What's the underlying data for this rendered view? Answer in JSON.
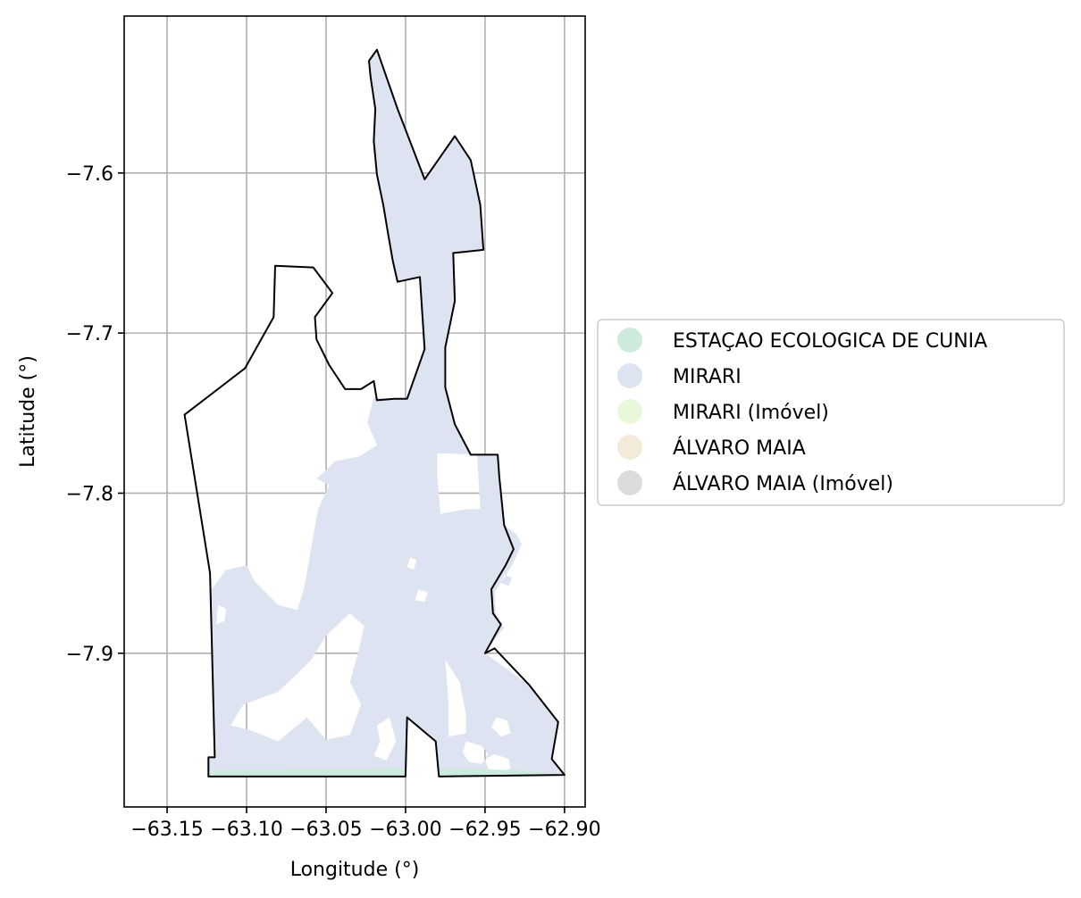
{
  "chart_data": {
    "type": "map",
    "xlabel": "Longitude (°)",
    "ylabel": "Latitude (°)",
    "xlim": [
      -63.177,
      -62.887
    ],
    "ylim": [
      -7.996,
      -7.502
    ],
    "grid": true,
    "xticks": [
      {
        "value": -63.15,
        "label": "−63.15"
      },
      {
        "value": -63.1,
        "label": "−63.10"
      },
      {
        "value": -63.05,
        "label": "−63.05"
      },
      {
        "value": -63.0,
        "label": "−63.00"
      },
      {
        "value": -62.95,
        "label": "−62.95"
      },
      {
        "value": -62.9,
        "label": "−62.90"
      }
    ],
    "yticks": [
      {
        "value": -7.6,
        "label": "−7.6"
      },
      {
        "value": -7.7,
        "label": "−7.7"
      },
      {
        "value": -7.8,
        "label": "−7.8"
      },
      {
        "value": -7.9,
        "label": "−7.9"
      }
    ],
    "legend_position": "right",
    "legend": [
      {
        "label": "ESTAÇAO ECOLOGICA DE CUNIA",
        "color": "#cdebdc"
      },
      {
        "label": "MIRARI",
        "color": "#dde3f1"
      },
      {
        "label": "MIRARI (Imóvel)",
        "color": "#e9f8da"
      },
      {
        "label": "ÁLVARO MAIA",
        "color": "#f3ead9"
      },
      {
        "label": "ÁLVARO MAIA (Imóvel)",
        "color": "#dcdcdc"
      }
    ],
    "boundary": [
      [
        -63.018,
        -7.523
      ],
      [
        -63.005,
        -7.56
      ],
      [
        -62.988,
        -7.604
      ],
      [
        -62.969,
        -7.577
      ],
      [
        -62.959,
        -7.592
      ],
      [
        -62.953,
        -7.62
      ],
      [
        -62.951,
        -7.648
      ],
      [
        -62.97,
        -7.65
      ],
      [
        -62.969,
        -7.68
      ],
      [
        -62.975,
        -7.709
      ],
      [
        -62.975,
        -7.734
      ],
      [
        -62.969,
        -7.757
      ],
      [
        -62.959,
        -7.776
      ],
      [
        -62.942,
        -7.776
      ],
      [
        -62.941,
        -7.79
      ],
      [
        -62.938,
        -7.82
      ],
      [
        -62.932,
        -7.835
      ],
      [
        -62.937,
        -7.845
      ],
      [
        -62.946,
        -7.86
      ],
      [
        -62.945,
        -7.875
      ],
      [
        -62.94,
        -7.882
      ],
      [
        -62.95,
        -7.9
      ],
      [
        -62.944,
        -7.897
      ],
      [
        -62.922,
        -7.92
      ],
      [
        -62.904,
        -7.943
      ],
      [
        -62.908,
        -7.966
      ],
      [
        -62.9,
        -7.976
      ],
      [
        -62.979,
        -7.977
      ],
      [
        -62.981,
        -7.955
      ],
      [
        -62.999,
        -7.94
      ],
      [
        -63.0,
        -7.977
      ],
      [
        -63.124,
        -7.977
      ],
      [
        -63.124,
        -7.965
      ],
      [
        -63.12,
        -7.965
      ],
      [
        -63.123,
        -7.85
      ],
      [
        -63.139,
        -7.751
      ],
      [
        -63.101,
        -7.722
      ],
      [
        -63.083,
        -7.69
      ],
      [
        -63.082,
        -7.658
      ],
      [
        -63.058,
        -7.659
      ],
      [
        -63.046,
        -7.675
      ],
      [
        -63.057,
        -7.69
      ],
      [
        -63.056,
        -7.704
      ],
      [
        -63.048,
        -7.72
      ],
      [
        -63.038,
        -7.735
      ],
      [
        -63.028,
        -7.735
      ],
      [
        -63.02,
        -7.73
      ],
      [
        -63.018,
        -7.742
      ],
      [
        -63.007,
        -7.741
      ],
      [
        -62.999,
        -7.741
      ],
      [
        -62.988,
        -7.71
      ],
      [
        -62.991,
        -7.665
      ],
      [
        -63.005,
        -7.668
      ],
      [
        -63.008,
        -7.655
      ],
      [
        -63.011,
        -7.638
      ],
      [
        -63.014,
        -7.62
      ],
      [
        -63.018,
        -7.601
      ],
      [
        -63.02,
        -7.58
      ],
      [
        -63.019,
        -7.56
      ],
      [
        -63.022,
        -7.54
      ],
      [
        -63.023,
        -7.53
      ],
      [
        -63.018,
        -7.523
      ]
    ],
    "regions": [
      {
        "name": "MIRARI",
        "polygon": [
          [
            -63.018,
            -7.523
          ],
          [
            -63.005,
            -7.56
          ],
          [
            -62.988,
            -7.604
          ],
          [
            -62.969,
            -7.577
          ],
          [
            -62.959,
            -7.592
          ],
          [
            -62.953,
            -7.62
          ],
          [
            -62.951,
            -7.648
          ],
          [
            -62.97,
            -7.65
          ],
          [
            -62.969,
            -7.68
          ],
          [
            -62.975,
            -7.709
          ],
          [
            -62.975,
            -7.734
          ],
          [
            -62.969,
            -7.757
          ],
          [
            -62.959,
            -7.776
          ],
          [
            -62.942,
            -7.776
          ],
          [
            -62.941,
            -7.79
          ],
          [
            -62.938,
            -7.82
          ],
          [
            -62.93,
            -7.826
          ],
          [
            -62.927,
            -7.832
          ],
          [
            -62.933,
            -7.845
          ],
          [
            -62.944,
            -7.862
          ],
          [
            -62.943,
            -7.878
          ],
          [
            -62.938,
            -7.884
          ],
          [
            -62.95,
            -7.9
          ],
          [
            -62.922,
            -7.92
          ],
          [
            -62.904,
            -7.943
          ],
          [
            -62.908,
            -7.966
          ],
          [
            -62.9,
            -7.976
          ],
          [
            -62.979,
            -7.977
          ],
          [
            -62.981,
            -7.955
          ],
          [
            -62.999,
            -7.94
          ],
          [
            -63.0,
            -7.977
          ],
          [
            -63.124,
            -7.977
          ],
          [
            -63.124,
            -7.965
          ],
          [
            -63.12,
            -7.965
          ],
          [
            -63.122,
            -7.86
          ],
          [
            -63.113,
            -7.848
          ],
          [
            -63.1,
            -7.845
          ],
          [
            -63.095,
            -7.855
          ],
          [
            -63.08,
            -7.87
          ],
          [
            -63.068,
            -7.873
          ],
          [
            -63.064,
            -7.86
          ],
          [
            -63.055,
            -7.81
          ],
          [
            -63.048,
            -7.795
          ],
          [
            -63.056,
            -7.791
          ],
          [
            -63.044,
            -7.78
          ],
          [
            -63.029,
            -7.777
          ],
          [
            -63.018,
            -7.77
          ],
          [
            -63.024,
            -7.756
          ],
          [
            -63.02,
            -7.74
          ],
          [
            -63.007,
            -7.741
          ],
          [
            -62.999,
            -7.741
          ],
          [
            -62.988,
            -7.71
          ],
          [
            -62.991,
            -7.665
          ],
          [
            -63.005,
            -7.668
          ],
          [
            -63.008,
            -7.655
          ],
          [
            -63.011,
            -7.638
          ],
          [
            -63.014,
            -7.62
          ],
          [
            -63.018,
            -7.601
          ],
          [
            -63.02,
            -7.58
          ],
          [
            -63.019,
            -7.56
          ],
          [
            -63.022,
            -7.54
          ],
          [
            -63.023,
            -7.53
          ],
          [
            -63.018,
            -7.523
          ]
        ],
        "holes": [
          [
            [
              -62.98,
              -7.775
            ],
            [
              -62.955,
              -7.776
            ],
            [
              -62.953,
              -7.81
            ],
            [
              -62.962,
              -7.81
            ],
            [
              -62.978,
              -7.813
            ],
            [
              -62.98,
              -7.79
            ]
          ],
          [
            [
              -62.975,
              -7.904
            ],
            [
              -62.966,
              -7.918
            ],
            [
              -62.962,
              -7.938
            ],
            [
              -62.962,
              -7.95
            ],
            [
              -62.973,
              -7.952
            ],
            [
              -62.973,
              -7.93
            ]
          ],
          [
            [
              -62.962,
              -7.955
            ],
            [
              -62.952,
              -7.958
            ],
            [
              -62.948,
              -7.963
            ],
            [
              -62.952,
              -7.969
            ],
            [
              -62.96,
              -7.968
            ],
            [
              -62.964,
              -7.962
            ]
          ],
          [
            [
              -62.935,
              -7.966
            ],
            [
              -62.944,
              -7.963
            ],
            [
              -62.95,
              -7.966
            ],
            [
              -62.948,
              -7.972
            ],
            [
              -62.94,
              -7.974
            ],
            [
              -62.934,
              -7.972
            ]
          ],
          [
            [
              -62.943,
              -7.94
            ],
            [
              -62.936,
              -7.942
            ],
            [
              -62.934,
              -7.95
            ],
            [
              -62.94,
              -7.952
            ],
            [
              -62.946,
              -7.946
            ]
          ],
          [
            [
              -62.938,
              -7.851
            ],
            [
              -62.933,
              -7.853
            ],
            [
              -62.935,
              -7.858
            ],
            [
              -62.94,
              -7.856
            ]
          ],
          [
            [
              -63.102,
              -7.932
            ],
            [
              -63.08,
              -7.924
            ],
            [
              -63.06,
              -7.905
            ],
            [
              -63.05,
              -7.889
            ],
            [
              -63.035,
              -7.875
            ],
            [
              -63.026,
              -7.883
            ],
            [
              -63.03,
              -7.9
            ],
            [
              -63.035,
              -7.918
            ],
            [
              -63.028,
              -7.932
            ],
            [
              -63.035,
              -7.951
            ],
            [
              -63.05,
              -7.954
            ],
            [
              -63.062,
              -7.94
            ],
            [
              -63.08,
              -7.955
            ],
            [
              -63.098,
              -7.948
            ],
            [
              -63.11,
              -7.945
            ]
          ],
          [
            [
              -63.118,
              -7.87
            ],
            [
              -63.113,
              -7.872
            ],
            [
              -63.114,
              -7.88
            ],
            [
              -63.119,
              -7.882
            ]
          ],
          [
            [
              -63.018,
              -7.945
            ],
            [
              -63.01,
              -7.94
            ],
            [
              -63.006,
              -7.955
            ],
            [
              -63.012,
              -7.967
            ],
            [
              -63.02,
              -7.964
            ],
            [
              -63.016,
              -7.955
            ]
          ],
          [
            [
              -62.992,
              -7.86
            ],
            [
              -62.986,
              -7.862
            ],
            [
              -62.988,
              -7.868
            ],
            [
              -62.994,
              -7.867
            ]
          ],
          [
            [
              -62.997,
              -7.84
            ],
            [
              -62.993,
              -7.842
            ],
            [
              -62.995,
              -7.848
            ],
            [
              -62.999,
              -7.846
            ]
          ]
        ]
      },
      {
        "name": "ESTAÇAO ECOLOGICA DE CUNIA",
        "polygon": [
          [
            -63.12,
            -7.973
          ],
          [
            -63.0,
            -7.972
          ],
          [
            -63.0,
            -7.977
          ],
          [
            -63.124,
            -7.977
          ]
        ]
      },
      {
        "name": "ESTAÇAO ECOLOGICA DE CUNIA",
        "polygon": [
          [
            -62.979,
            -7.972
          ],
          [
            -62.93,
            -7.973
          ],
          [
            -62.9,
            -7.976
          ],
          [
            -62.979,
            -7.977
          ]
        ]
      }
    ]
  }
}
